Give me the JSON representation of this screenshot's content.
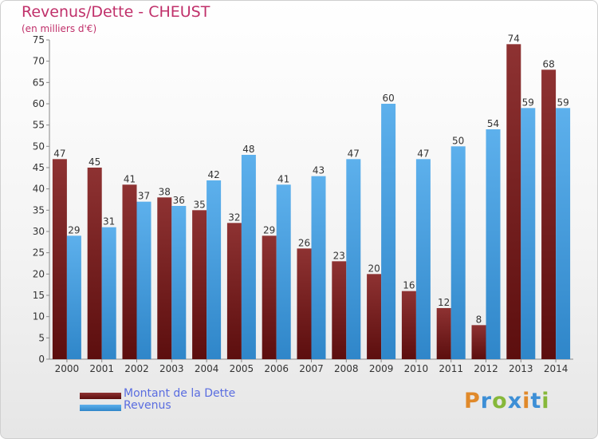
{
  "header": {
    "title": "Revenus/Dette - CHEUST",
    "subtitle": "(en milliers d'€)"
  },
  "legend": {
    "debt_label": "Montant de la Dette",
    "revenue_label": "Revenus"
  },
  "logo": {
    "letters": [
      "P",
      "r",
      "o",
      "x",
      "i",
      "t",
      "i"
    ],
    "colors": [
      "#e0892a",
      "#3d8fd6",
      "#86b83a",
      "#3d8fd6",
      "#e0892a",
      "#3d8fd6",
      "#86b83a"
    ]
  },
  "colors": {
    "debt": "#7a1f1f",
    "revenue": "#4aa3e4",
    "title": "#c0306a",
    "legend_text": "#5a6de0"
  },
  "chart_data": {
    "type": "bar",
    "title": "Revenus/Dette - CHEUST",
    "subtitle": "(en milliers d'€)",
    "xlabel": "",
    "ylabel": "",
    "categories": [
      "2000",
      "2001",
      "2002",
      "2003",
      "2004",
      "2005",
      "2006",
      "2007",
      "2008",
      "2009",
      "2010",
      "2011",
      "2012",
      "2013",
      "2014"
    ],
    "series": [
      {
        "name": "Montant de la Dette",
        "values": [
          47,
          45,
          41,
          38,
          35,
          32,
          29,
          26,
          23,
          20,
          16,
          12,
          8,
          74,
          68
        ]
      },
      {
        "name": "Revenus",
        "values": [
          29,
          31,
          37,
          36,
          42,
          48,
          41,
          43,
          47,
          60,
          47,
          50,
          54,
          59,
          59
        ]
      }
    ],
    "ylim": [
      0,
      75
    ],
    "yticks": [
      0,
      5,
      10,
      15,
      20,
      25,
      30,
      35,
      40,
      45,
      50,
      55,
      60,
      65,
      70,
      75
    ],
    "grid": false,
    "data_labels": true,
    "legend_position": "bottom-left"
  }
}
